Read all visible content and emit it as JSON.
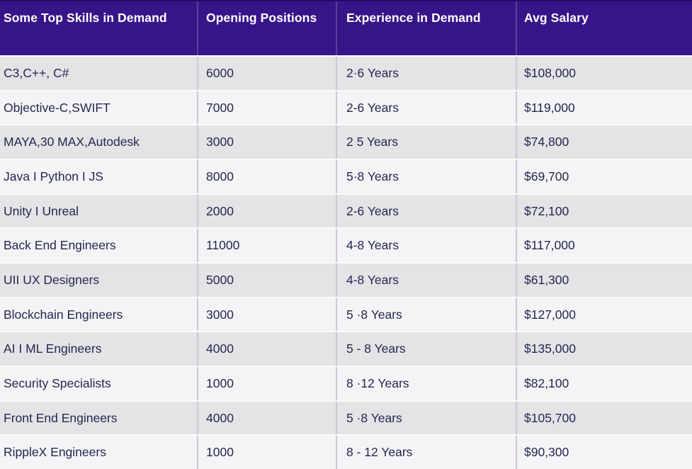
{
  "chart_data": {
    "type": "table",
    "columns": [
      "Some Top Skills in Demand",
      "Opening Positions",
      "Experience in Demand",
      "Avg Salary"
    ],
    "rows": [
      {
        "skill": "C3,C++, C#",
        "openings": "6000",
        "experience": "2·6 Years",
        "salary": "$108,000"
      },
      {
        "skill": "Objective-C,SWIFT",
        "openings": "7000",
        "experience": "2-6 Years",
        "salary": "$119,000"
      },
      {
        "skill": "MAYA,30 MAX,Autodesk",
        "openings": "3000",
        "experience": "2 5 Years",
        "salary": "$74,800"
      },
      {
        "skill": "Java I Python I JS",
        "openings": "8000",
        "experience": "5·8 Years",
        "salary": "$69,700"
      },
      {
        "skill": "Unity I Unreal",
        "openings": "2000",
        "experience": "2-6 Years",
        "salary": "$72,100"
      },
      {
        "skill": "Back End Engineers",
        "openings": "11000",
        "experience": "4-8 Years",
        "salary": "$117,000"
      },
      {
        "skill": "UII UX Designers",
        "openings": "5000",
        "experience": "4-8 Years",
        "salary": "$61,300"
      },
      {
        "skill": "Blockchain Engineers",
        "openings": "3000",
        "experience": "5 ·8 Years",
        "salary": "$127,000"
      },
      {
        "skill": "AI I ML Engineers",
        "openings": "4000",
        "experience": "5 - 8 Years",
        "salary": "$135,000"
      },
      {
        "skill": "Security Specialists",
        "openings": "1000",
        "experience": "8 ·12 Years",
        "salary": "$82,100"
      },
      {
        "skill": "Front End Engineers",
        "openings": "4000",
        "experience": "5 ·8 Years",
        "salary": "$105,700"
      },
      {
        "skill": "RippleX Engineers",
        "openings": "1000",
        "experience": "8 - 12 Years",
        "salary": "$90,300"
      }
    ]
  },
  "colors": {
    "header_bg": "#371589",
    "header_text": "#ffffff",
    "row_odd_bg": "#e4e4e7",
    "row_even_bg": "#f4f4f7",
    "body_text": "#23284e",
    "column_divider": "#c9c9d1",
    "row_separator": "#fafafc"
  }
}
